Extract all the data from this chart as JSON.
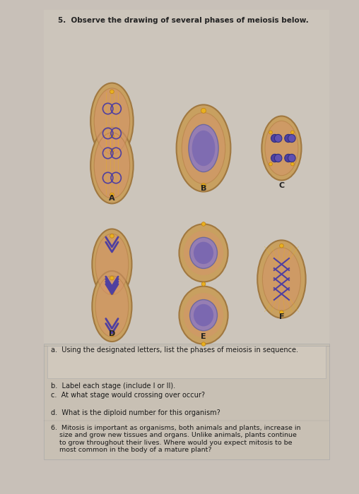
{
  "title": "5.  Observe the drawing of several phases of meiosis below.",
  "page_bg": "#c8c0b8",
  "question_a": "a.  Using the designated letters, list the phases of meiosis in sequence.",
  "question_b": "b.  Label each stage (include I or II).",
  "question_c": "c.  At what stage would crossing over occur?",
  "question_d": "d.  What is the diploid number for this organism?",
  "question_6": "6.  Mitosis is important as organisms, both animals and plants, increase in\n    size and grow new tissues and organs. Unlike animals, plants continue\n    to grow throughout their lives. Where would you expect mitosis to be\n    most common in the body of a mature plant?"
}
